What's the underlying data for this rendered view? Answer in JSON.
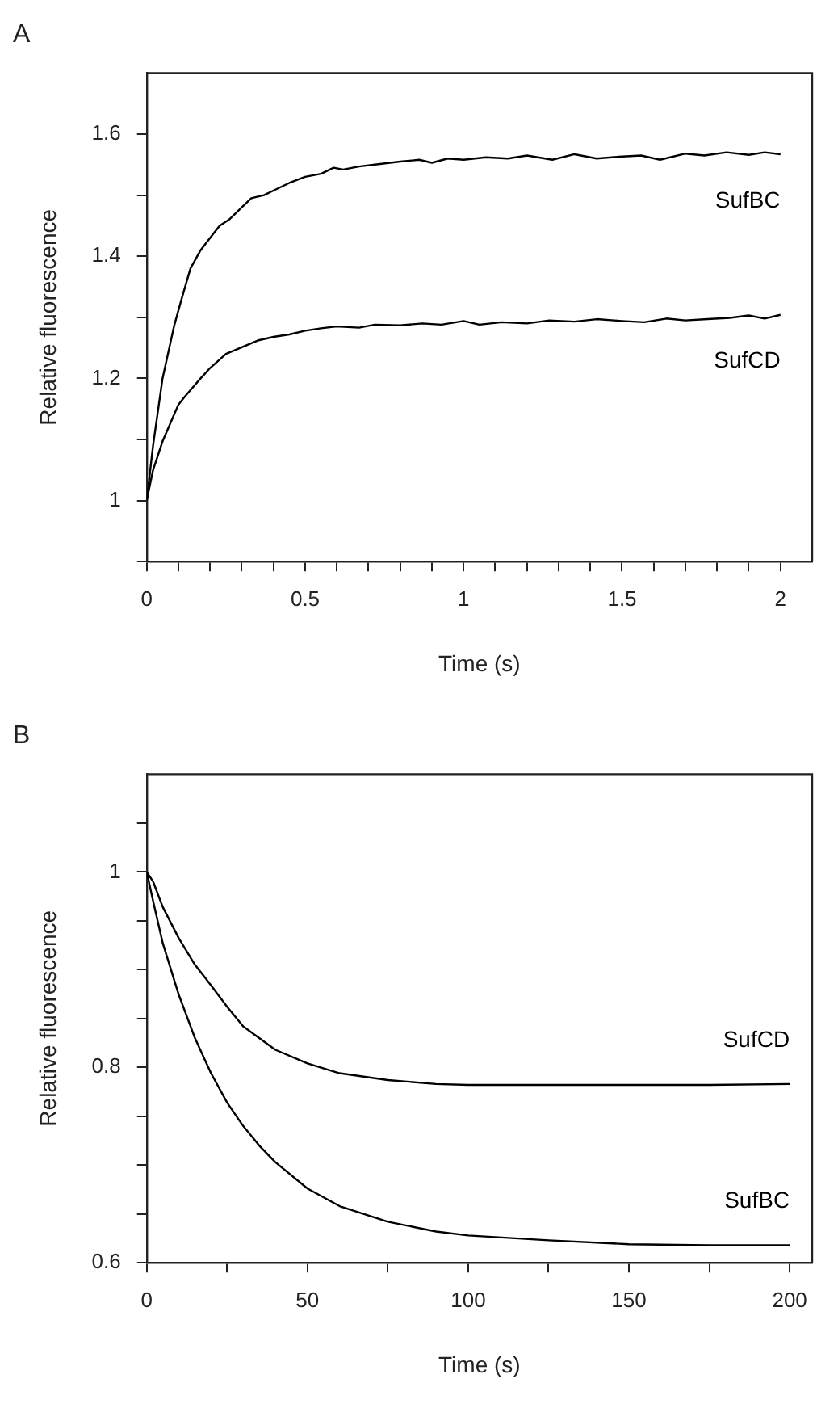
{
  "chart_data": [
    {
      "type": "line",
      "title": "A",
      "xlabel": "Time (s)",
      "ylabel": "Relative fluorescence",
      "xlim": [
        0,
        2.1
      ],
      "ylim": [
        0.9,
        1.7
      ],
      "xticks": [
        0,
        {
          "value": 0.1,
          "label": null
        },
        {
          "value": 0.2,
          "label": null
        },
        {
          "value": 0.3,
          "label": null
        },
        {
          "value": 0.4,
          "label": null
        },
        0.5,
        {
          "value": 0.6,
          "label": null
        },
        {
          "value": 0.7,
          "label": null
        },
        {
          "value": 0.8,
          "label": null
        },
        {
          "value": 0.9,
          "label": null
        },
        1,
        {
          "value": 1.1,
          "label": null
        },
        {
          "value": 1.2,
          "label": null
        },
        {
          "value": 1.3,
          "label": null
        },
        {
          "value": 1.4,
          "label": null
        },
        1.5,
        {
          "value": 1.6,
          "label": null
        },
        {
          "value": 1.7,
          "label": null
        },
        {
          "value": 1.8,
          "label": null
        },
        {
          "value": 1.9,
          "label": null
        },
        2
      ],
      "yticks": [
        {
          "value": 0.9,
          "label": null
        },
        1,
        {
          "value": 1.1,
          "label": null
        },
        1.2,
        {
          "value": 1.3,
          "label": null
        },
        1.4,
        {
          "value": 1.5,
          "label": null
        },
        1.6
      ],
      "grid": false,
      "legend": false,
      "marker": "none",
      "line_style": "solid",
      "series": [
        {
          "name": "SufBC",
          "color": "#000000",
          "x": [
            0,
            0.02,
            0.05,
            0.086,
            0.11,
            0.138,
            0.17,
            0.2,
            0.23,
            0.26,
            0.3,
            0.33,
            0.37,
            0.41,
            0.45,
            0.5,
            0.55,
            0.59,
            0.62,
            0.67,
            0.72,
            0.8,
            0.86,
            0.9,
            0.95,
            1.0,
            1.07,
            1.14,
            1.2,
            1.28,
            1.35,
            1.42,
            1.49,
            1.56,
            1.62,
            1.7,
            1.76,
            1.83,
            1.9,
            1.95,
            2.0
          ],
          "values": [
            1.0,
            1.09,
            1.2,
            1.285,
            1.33,
            1.38,
            1.41,
            1.43,
            1.45,
            1.46,
            1.48,
            1.495,
            1.5,
            1.51,
            1.52,
            1.53,
            1.535,
            1.545,
            1.542,
            1.547,
            1.55,
            1.555,
            1.558,
            1.553,
            1.56,
            1.558,
            1.562,
            1.56,
            1.565,
            1.558,
            1.567,
            1.56,
            1.563,
            1.565,
            1.558,
            1.568,
            1.565,
            1.57,
            1.566,
            1.57,
            1.567
          ]
        },
        {
          "name": "SufCD",
          "color": "#000000",
          "x": [
            0,
            0.02,
            0.05,
            0.1,
            0.12,
            0.14,
            0.17,
            0.2,
            0.25,
            0.3,
            0.35,
            0.4,
            0.45,
            0.5,
            0.55,
            0.6,
            0.67,
            0.72,
            0.8,
            0.87,
            0.93,
            1.0,
            1.05,
            1.12,
            1.2,
            1.27,
            1.35,
            1.42,
            1.5,
            1.57,
            1.64,
            1.7,
            1.77,
            1.84,
            1.9,
            1.95,
            2.0
          ],
          "values": [
            1.0,
            1.05,
            1.097,
            1.157,
            1.17,
            1.182,
            1.2,
            1.217,
            1.24,
            1.251,
            1.262,
            1.268,
            1.272,
            1.278,
            1.282,
            1.285,
            1.283,
            1.288,
            1.287,
            1.29,
            1.288,
            1.294,
            1.288,
            1.292,
            1.29,
            1.295,
            1.293,
            1.297,
            1.294,
            1.292,
            1.298,
            1.295,
            1.297,
            1.299,
            1.303,
            1.298,
            1.304
          ]
        }
      ]
    },
    {
      "type": "line",
      "title": "B",
      "xlabel": "Time (s)",
      "ylabel": "Relative fluorescence",
      "xlim": [
        0,
        207
      ],
      "ylim": [
        0.6,
        1.1
      ],
      "xticks": [
        0,
        {
          "value": 25,
          "label": null
        },
        50,
        {
          "value": 75,
          "label": null
        },
        100,
        {
          "value": 125,
          "label": null
        },
        150,
        {
          "value": 175,
          "label": null
        },
        200
      ],
      "yticks": [
        0.6,
        {
          "value": 0.65,
          "label": null
        },
        {
          "value": 0.7,
          "label": null
        },
        {
          "value": 0.75,
          "label": null
        },
        0.8,
        {
          "value": 0.85,
          "label": null
        },
        {
          "value": 0.9,
          "label": null
        },
        {
          "value": 0.95,
          "label": null
        },
        1,
        {
          "value": 1.05,
          "label": null
        }
      ],
      "grid": false,
      "legend": false,
      "marker": "none",
      "line_style": "solid",
      "series": [
        {
          "name": "SufCD",
          "color": "#000000",
          "x": [
            0,
            2,
            5,
            10,
            15,
            20,
            25,
            30,
            35,
            40,
            50,
            60,
            75,
            90,
            100,
            125,
            150,
            175,
            200
          ],
          "values": [
            1.0,
            0.99,
            0.964,
            0.932,
            0.905,
            0.884,
            0.862,
            0.842,
            0.83,
            0.818,
            0.804,
            0.794,
            0.787,
            0.783,
            0.782,
            0.782,
            0.782,
            0.782,
            0.783
          ]
        },
        {
          "name": "SufBC",
          "color": "#000000",
          "x": [
            0,
            2,
            5,
            10,
            15,
            20,
            25,
            30,
            35,
            40,
            50,
            60,
            75,
            90,
            100,
            125,
            150,
            175,
            200
          ],
          "values": [
            1.0,
            0.97,
            0.927,
            0.874,
            0.83,
            0.794,
            0.764,
            0.74,
            0.72,
            0.703,
            0.676,
            0.658,
            0.642,
            0.632,
            0.628,
            0.623,
            0.619,
            0.618,
            0.618
          ]
        }
      ]
    }
  ]
}
